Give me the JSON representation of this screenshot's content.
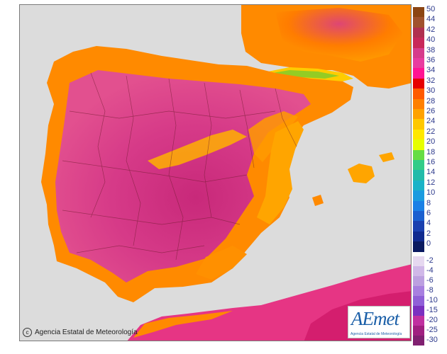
{
  "map": {
    "background_sea": "#dcdcdc",
    "palette": {
      "hot_40": "#b31a57",
      "hot_36": "#d41e6e",
      "hot_34": "#e63584",
      "warm_32": "#ee1a1a",
      "warm_30": "#ff4e00",
      "warm_28": "#ff7a00",
      "warm_26": "#ffa500",
      "mild_24": "#ffcc00",
      "mild_22": "#ffe600",
      "cool_20": "#66cc33"
    }
  },
  "footer": {
    "copyright_symbol": "c",
    "agency": "Agencia Estatal de Meteorología"
  },
  "logo": {
    "wordmark": "AEmet",
    "subtitle": "Agencia Estatal de Meteorología"
  },
  "legend": {
    "upper_ticks": [
      "50",
      "44",
      "42",
      "40",
      "38",
      "36",
      "34",
      "32",
      "30",
      "28",
      "26",
      "24",
      "22",
      "20",
      "18",
      "16",
      "14",
      "12",
      "10",
      "8",
      "6",
      "4",
      "2",
      "0"
    ],
    "upper_colors": [
      "#8b4513",
      "#a0522d",
      "#b03050",
      "#c8285a",
      "#d63c8c",
      "#e83ca0",
      "#ff1493",
      "#e60000",
      "#ff5a00",
      "#ff8000",
      "#ffa200",
      "#ffc800",
      "#ffe800",
      "#e6ff00",
      "#66dd44",
      "#33cc88",
      "#22bbaa",
      "#1ab3c8",
      "#1a9be0",
      "#1a80e6",
      "#1a5fd0",
      "#1a40b0",
      "#102a90",
      "#0a1a60"
    ],
    "lower_ticks": [
      "-2",
      "-4",
      "-6",
      "-8",
      "-10",
      "-15",
      "-20",
      "-25",
      "-30"
    ],
    "lower_colors": [
      "#e6d8f0",
      "#d0b8e8",
      "#bca0e0",
      "#a880e0",
      "#9060d8",
      "#7a30c0",
      "#c030a0",
      "#a02080",
      "#802070"
    ]
  }
}
